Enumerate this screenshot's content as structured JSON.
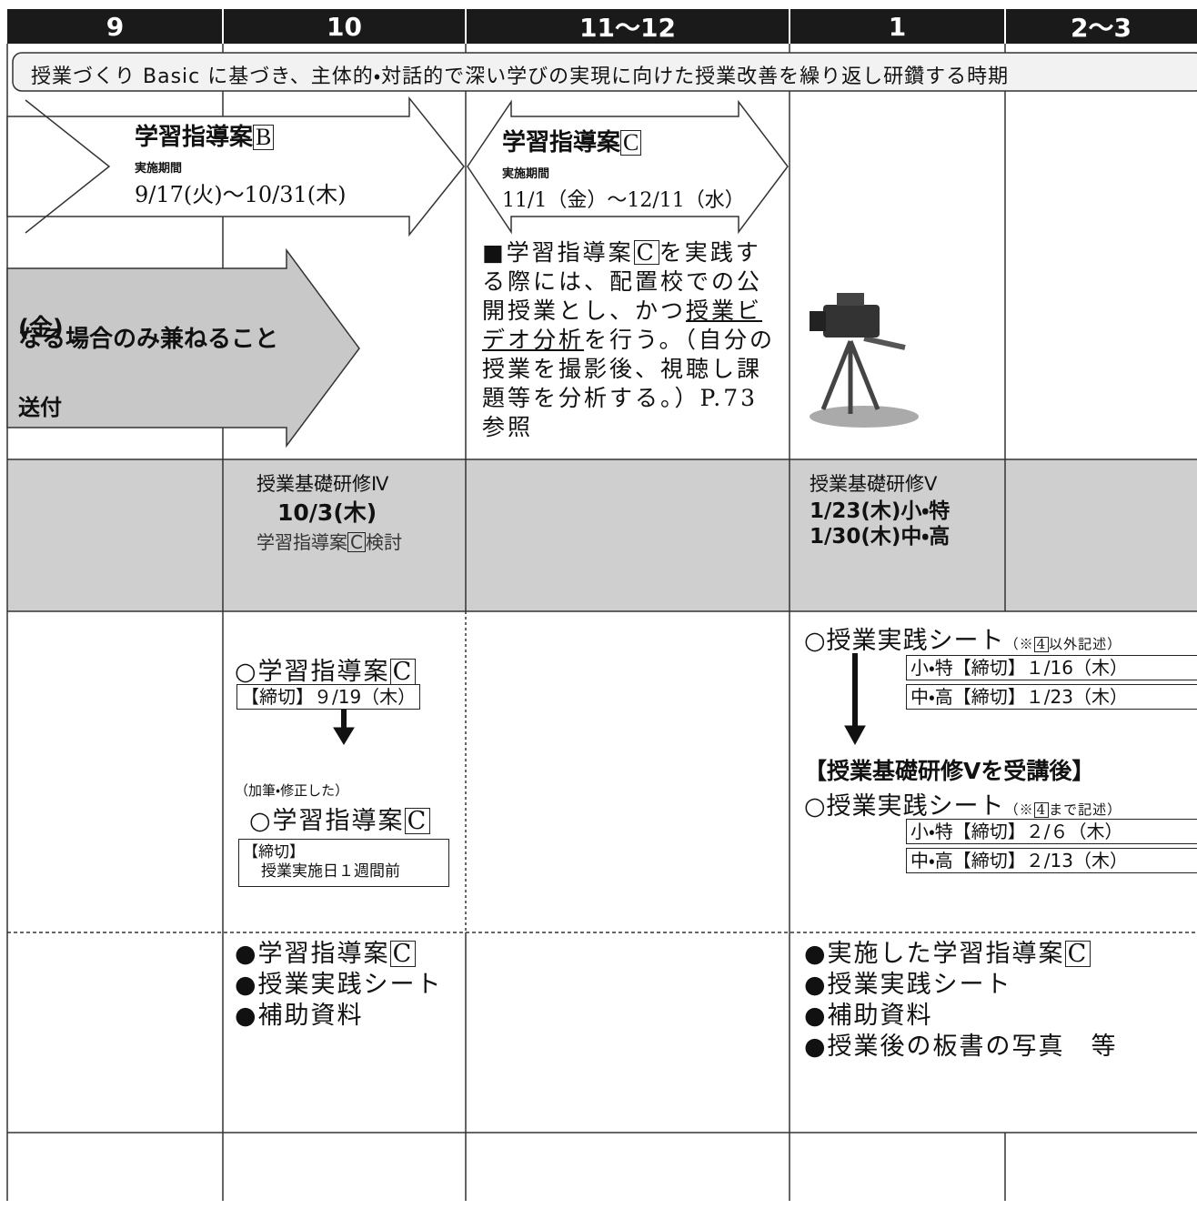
{
  "header": {
    "months": [
      "9",
      "10",
      "11〜12",
      "1",
      "2〜3"
    ]
  },
  "banner": "授業づくり Basic に基づき、主体的・対話的で深い学びの実現に向けた授業改善を繰り返し研鑽する時期",
  "plan_b": {
    "title": "学習指導案",
    "letter": "B",
    "period_label": "実施期間",
    "period": "9/17(火)〜10/31(木)"
  },
  "plan_c": {
    "title": "学習指導案",
    "letter": "C",
    "period_label": "実施期間",
    "period": "11/1（金）〜12/11（水）"
  },
  "gray_arrow": {
    "lines": [
      "(金)",
      "なる場合のみ兼ねること",
      "送付"
    ]
  },
  "practice_note": {
    "before": "■学習指導案",
    "letter": "C",
    "middle": "を実践する際には、配置校での公開授業とし、かつ",
    "underlined": "授業ビデオ分析",
    "after": "を行う。（自分の授業を撮影後、視聴し課題等を分析する。）P.73 参照"
  },
  "trainings": [
    {
      "title": "授業基礎研修Ⅳ",
      "dates": [
        "10/3(木)"
      ],
      "note": {
        "before": "学習指導案",
        "letter": "C",
        "after": "検討"
      }
    },
    {
      "title": "授業基礎研修Ⅴ",
      "dates": [
        "1/23(木)小・特",
        "1/30(木)中・高"
      ]
    }
  ],
  "submission_oct": {
    "item1": {
      "text": "○学習指導案",
      "letter": "C"
    },
    "deadline1": "【締切】９/19（木）",
    "revised": "（加筆・修正した）",
    "item2": {
      "text": "○学習指導案",
      "letter": "C"
    },
    "deadline2": [
      "【締切】",
      "授業実施日１週間前"
    ]
  },
  "submission_jan": {
    "sheet1": {
      "text": "○授業実践シート",
      "note_before": "（※",
      "note_box": "4",
      "note_after": "以外記述）"
    },
    "deadlines1": [
      "小・特【締切】１/16（木）",
      "中・高【締切】１/23（木）"
    ],
    "after_training": "【授業基礎研修Ⅴを受講後】",
    "sheet2": {
      "text": "○授業実践シート",
      "note_before": "（※",
      "note_box": "4",
      "note_after": "まで記述）"
    },
    "deadlines2": [
      "小・特【締切】２/６（木）",
      "中・高【締切】２/13（木）"
    ]
  },
  "materials_oct": [
    {
      "text": "●学習指導案",
      "letter": "C"
    },
    {
      "text": "●授業実践シート"
    },
    {
      "text": "●補助資料"
    }
  ],
  "materials_jan": [
    {
      "text": "●実施した学習指導案",
      "letter": "C"
    },
    {
      "text": "●授業実践シート"
    },
    {
      "text": "●補助資料"
    },
    {
      "text": "●授業後の板書の写真　等"
    }
  ]
}
